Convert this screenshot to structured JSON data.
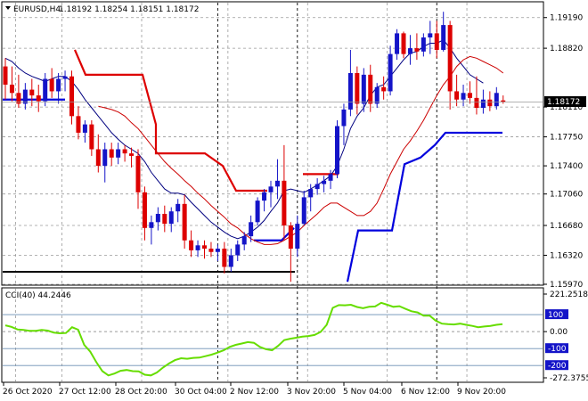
{
  "header": {
    "arrow_icon": "triangle-down-icon",
    "title": "EURUSD,H4",
    "ohlc": "1.18192 1.18254 1.18151 1.18172"
  },
  "price_axis": {
    "ticks": [
      "1.19190",
      "1.18820",
      "1.18110",
      "1.17750",
      "1.17400",
      "1.17060",
      "1.16680",
      "1.16320",
      "1.15970"
    ],
    "current_price": "1.18172"
  },
  "cci_panel": {
    "label": "CCI(40) 44.2446",
    "axis_labels": [
      "221.2518",
      "100",
      "0.00",
      "-100",
      "-200",
      "-272.3755"
    ],
    "series": [
      37,
      28,
      13,
      10,
      5,
      5,
      10,
      6,
      -6,
      -10,
      -8,
      26,
      11,
      -78,
      -118,
      -180,
      -233,
      -258,
      -247,
      -231,
      -226,
      -233,
      -234,
      -254,
      -258,
      -241,
      -212,
      -188,
      -168,
      -157,
      -160,
      -155,
      -153,
      -145,
      -136,
      -124,
      -110,
      -90,
      -78,
      -70,
      -62,
      -66,
      -90,
      -104,
      -110,
      -84,
      -50,
      -42,
      -36,
      -30,
      -26,
      -20,
      -2,
      40,
      140,
      156,
      155,
      158,
      145,
      138,
      146,
      148,
      170,
      158,
      146,
      150,
      134,
      120,
      113,
      94,
      94,
      64,
      47,
      44,
      42,
      47,
      40,
      34,
      26,
      30,
      34,
      40,
      44
    ]
  },
  "time_axis": {
    "labels": [
      "26 Oct 2020",
      "27 Oct 12:00",
      "28 Oct 20:00",
      "30 Oct 04:00",
      "2 Nov 12:00",
      "3 Nov 20:00",
      "5 Nov 04:00",
      "6 Nov 12:00",
      "9 Nov 20:00"
    ]
  },
  "colors": {
    "bull_candle": "#1414c8",
    "bear_candle": "#dd0000",
    "ma_fast": "#000080",
    "ma_slow": "#cc0000",
    "red_step": "#dd0000",
    "blue_step": "#0000dd",
    "support_line": "#000000",
    "cci_line": "#66dd00",
    "cci_level": "#6a8fb5",
    "axis_badge_bg": "#1414c8",
    "price_badge_bg": "#000000"
  },
  "chart_data": {
    "type": "candlestick",
    "symbol": "EURUSD",
    "timeframe": "H4",
    "ylim": [
      1.1597,
      1.1937
    ],
    "candles": [
      [
        1.186,
        1.187,
        1.182,
        1.1838
      ],
      [
        1.1838,
        1.186,
        1.1818,
        1.1828
      ],
      [
        1.1828,
        1.185,
        1.181,
        1.1815
      ],
      [
        1.1815,
        1.184,
        1.1808,
        1.1832
      ],
      [
        1.1832,
        1.1845,
        1.1812,
        1.1825
      ],
      [
        1.1825,
        1.1838,
        1.1805,
        1.1818
      ],
      [
        1.1818,
        1.1852,
        1.1812,
        1.1845
      ],
      [
        1.1845,
        1.1858,
        1.1822,
        1.183
      ],
      [
        1.183,
        1.1852,
        1.1815,
        1.1845
      ],
      [
        1.1845,
        1.1855,
        1.183,
        1.1848
      ],
      [
        1.1848,
        1.1855,
        1.179,
        1.18
      ],
      [
        1.18,
        1.1812,
        1.1772,
        1.178
      ],
      [
        1.178,
        1.1795,
        1.1768,
        1.179
      ],
      [
        1.179,
        1.1795,
        1.1752,
        1.176
      ],
      [
        1.176,
        1.1778,
        1.1732,
        1.174
      ],
      [
        1.174,
        1.1768,
        1.172,
        1.176
      ],
      [
        1.176,
        1.1768,
        1.174,
        1.175
      ],
      [
        1.175,
        1.1768,
        1.1742,
        1.176
      ],
      [
        1.176,
        1.1765,
        1.1745,
        1.1755
      ],
      [
        1.1755,
        1.1762,
        1.1738,
        1.1752
      ],
      [
        1.1752,
        1.176,
        1.1688,
        1.1708
      ],
      [
        1.1708,
        1.1715,
        1.165,
        1.1665
      ],
      [
        1.1665,
        1.168,
        1.1645,
        1.1672
      ],
      [
        1.1672,
        1.169,
        1.1662,
        1.1682
      ],
      [
        1.1682,
        1.1692,
        1.166,
        1.167
      ],
      [
        1.167,
        1.169,
        1.166,
        1.1685
      ],
      [
        1.1685,
        1.17,
        1.1672,
        1.1694
      ],
      [
        1.1694,
        1.1705,
        1.164,
        1.165
      ],
      [
        1.165,
        1.1662,
        1.163,
        1.1638
      ],
      [
        1.1638,
        1.165,
        1.163,
        1.1644
      ],
      [
        1.1644,
        1.165,
        1.1628,
        1.164
      ],
      [
        1.164,
        1.1648,
        1.163,
        1.1636
      ],
      [
        1.1636,
        1.1645,
        1.1625,
        1.164
      ],
      [
        1.164,
        1.1648,
        1.161,
        1.1618
      ],
      [
        1.1618,
        1.164,
        1.1612,
        1.1632
      ],
      [
        1.1632,
        1.165,
        1.1625,
        1.1645
      ],
      [
        1.1645,
        1.166,
        1.1638,
        1.1655
      ],
      [
        1.1655,
        1.168,
        1.1648,
        1.1672
      ],
      [
        1.1672,
        1.1702,
        1.1668,
        1.1698
      ],
      [
        1.1698,
        1.1712,
        1.1685,
        1.1708
      ],
      [
        1.1708,
        1.1722,
        1.169,
        1.1715
      ],
      [
        1.1715,
        1.1748,
        1.17,
        1.1722
      ],
      [
        1.1722,
        1.1765,
        1.165,
        1.1668
      ],
      [
        1.1668,
        1.1672,
        1.16,
        1.164
      ],
      [
        1.164,
        1.168,
        1.163,
        1.167
      ],
      [
        1.167,
        1.171,
        1.1668,
        1.1702
      ],
      [
        1.1702,
        1.1718,
        1.1685,
        1.1712
      ],
      [
        1.1712,
        1.1725,
        1.1705,
        1.1718
      ],
      [
        1.1718,
        1.1728,
        1.1708,
        1.1722
      ],
      [
        1.1722,
        1.1735,
        1.1712,
        1.173
      ],
      [
        1.173,
        1.1795,
        1.1725,
        1.1788
      ],
      [
        1.1788,
        1.1815,
        1.1765,
        1.1808
      ],
      [
        1.1808,
        1.188,
        1.18,
        1.1852
      ],
      [
        1.1852,
        1.186,
        1.1802,
        1.1815
      ],
      [
        1.1815,
        1.1858,
        1.1805,
        1.185
      ],
      [
        1.185,
        1.1862,
        1.1805,
        1.1815
      ],
      [
        1.1815,
        1.184,
        1.181,
        1.1835
      ],
      [
        1.1835,
        1.1848,
        1.182,
        1.183
      ],
      [
        1.183,
        1.1885,
        1.1825,
        1.1875
      ],
      [
        1.1875,
        1.1905,
        1.1868,
        1.19
      ],
      [
        1.19,
        1.1902,
        1.187,
        1.1875
      ],
      [
        1.1875,
        1.1898,
        1.1862,
        1.1882
      ],
      [
        1.1882,
        1.19,
        1.1868,
        1.1878
      ],
      [
        1.1878,
        1.19,
        1.1872,
        1.1895
      ],
      [
        1.1895,
        1.1915,
        1.1875,
        1.19
      ],
      [
        1.19,
        1.1915,
        1.187,
        1.188
      ],
      [
        1.188,
        1.1926,
        1.1878,
        1.191
      ],
      [
        1.191,
        1.1915,
        1.1808,
        1.183
      ],
      [
        1.183,
        1.185,
        1.1812,
        1.182
      ],
      [
        1.182,
        1.1838,
        1.1812,
        1.1828
      ],
      [
        1.1828,
        1.1842,
        1.1815,
        1.1822
      ],
      [
        1.1822,
        1.1848,
        1.1802,
        1.181
      ],
      [
        1.181,
        1.1832,
        1.1803,
        1.182
      ],
      [
        1.182,
        1.183,
        1.1806,
        1.1812
      ],
      [
        1.1812,
        1.1835,
        1.1808,
        1.1828
      ],
      [
        1.1819,
        1.1825,
        1.1815,
        1.1817
      ]
    ],
    "ma_fast": [
      1.187,
      1.1866,
      1.1858,
      1.1852,
      1.1848,
      1.1845,
      1.1842,
      1.1845,
      1.1848,
      1.1848,
      1.1842,
      1.1832,
      1.182,
      1.181,
      1.18,
      1.179,
      1.178,
      1.1772,
      1.1765,
      1.176,
      1.1755,
      1.1745,
      1.1732,
      1.1722,
      1.1712,
      1.1707,
      1.1707,
      1.1705,
      1.1696,
      1.1688,
      1.168,
      1.1672,
      1.1666,
      1.166,
      1.1655,
      1.1652,
      1.1655,
      1.166,
      1.1666,
      1.1674,
      1.1685,
      1.1695,
      1.171,
      1.1712,
      1.171,
      1.1708,
      1.1712,
      1.1717,
      1.1722,
      1.1728,
      1.174,
      1.176,
      1.1785,
      1.18,
      1.181,
      1.1825,
      1.1835,
      1.1838,
      1.1848,
      1.1858,
      1.1868,
      1.1876,
      1.1878,
      1.1884,
      1.1888,
      1.1888,
      1.1892,
      1.1882,
      1.187,
      1.186,
      1.185,
      1.1845,
      1.184
    ],
    "ma_slow": [
      1.1812,
      1.181,
      1.1808,
      1.1805,
      1.18,
      1.1792,
      1.1785,
      1.1775,
      1.1765,
      1.1755,
      1.1745,
      1.1737,
      1.173,
      1.1722,
      1.1715,
      1.1707,
      1.17,
      1.1692,
      1.1685,
      1.1678,
      1.167,
      1.1665,
      1.1658,
      1.1652,
      1.1648,
      1.1645,
      1.1645,
      1.1646,
      1.165,
      1.1655,
      1.166,
      1.1668,
      1.1675,
      1.1682,
      1.169,
      1.1695,
      1.1695,
      1.169,
      1.1685,
      1.168,
      1.168,
      1.1685,
      1.1695,
      1.1712,
      1.173,
      1.1745,
      1.176,
      1.177,
      1.1782,
      1.1795,
      1.181,
      1.1825,
      1.1838,
      1.1848,
      1.186,
      1.1868,
      1.1872,
      1.187,
      1.1866,
      1.1862,
      1.1858,
      1.1852
    ],
    "red_step_levels": [
      1.188,
      1.185,
      1.179,
      1.1755,
      1.174,
      1.171,
      1.173
    ],
    "blue_step_levels": [
      1.182,
      1.165,
      1.16,
      1.1662,
      1.1742,
      1.175,
      1.178
    ],
    "support_level": 1.1612,
    "price_axis_labels": [
      "1.19190",
      "1.18820",
      "1.18110",
      "1.17750",
      "1.17400",
      "1.17060",
      "1.16680",
      "1.16320",
      "1.15970"
    ],
    "time_labels": [
      "26 Oct 2020",
      "27 Oct 12:00",
      "28 Oct 20:00",
      "30 Oct 04:00",
      "2 Nov 12:00",
      "3 Nov 20:00",
      "5 Nov 04:00",
      "6 Nov 12:00",
      "9 Nov 20:00"
    ],
    "cci_levels": [
      100,
      0,
      -100,
      -200
    ],
    "cci_ylim": [
      -272.3755,
      221.2518
    ],
    "grid": true
  }
}
